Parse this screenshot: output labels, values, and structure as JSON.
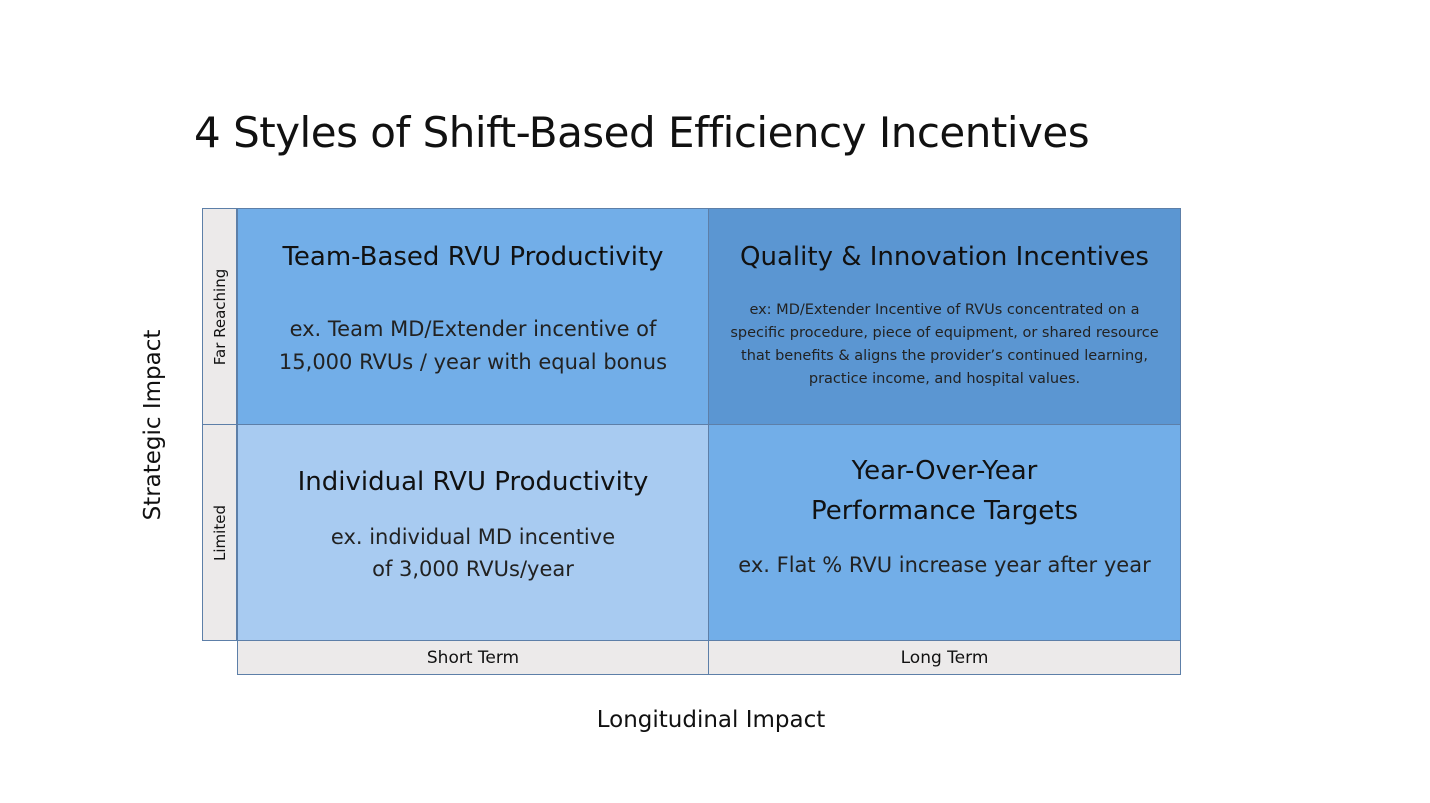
{
  "title": "4 Styles of Shift-Based Efficiency Incentives",
  "y_axis_title": "Strategic Impact",
  "x_axis_title": "Longitudinal Impact",
  "rows": {
    "top": "Far Reaching",
    "bottom": "Limited"
  },
  "columns": {
    "left": "Short Term",
    "right": "Long Term"
  },
  "quadrants": {
    "top_left": {
      "heading": "Team-Based RVU Productivity",
      "body_line1": "ex. Team MD/Extender incentive of",
      "body_line2": "15,000 RVUs / year with equal bonus",
      "color": "#72aee8"
    },
    "top_right": {
      "heading": "Quality & Innovation Incentives",
      "body": "ex: MD/Extender Incentive of RVUs concentrated on a specific procedure, piece of equipment, or shared resource that benefits & aligns the provider’s continued learning, practice income, and hospital values.",
      "color": "#5b96d2"
    },
    "bottom_left": {
      "heading": "Individual RVU Productivity",
      "body_line1": "ex. individual MD incentive",
      "body_line2": "of 3,000 RVUs/year",
      "color": "#a8cbf1"
    },
    "bottom_right": {
      "heading_line1": "Year-Over-Year",
      "heading_line2": "Performance Targets",
      "body": "ex. Flat % RVU increase year after year",
      "color": "#72aee8"
    }
  }
}
